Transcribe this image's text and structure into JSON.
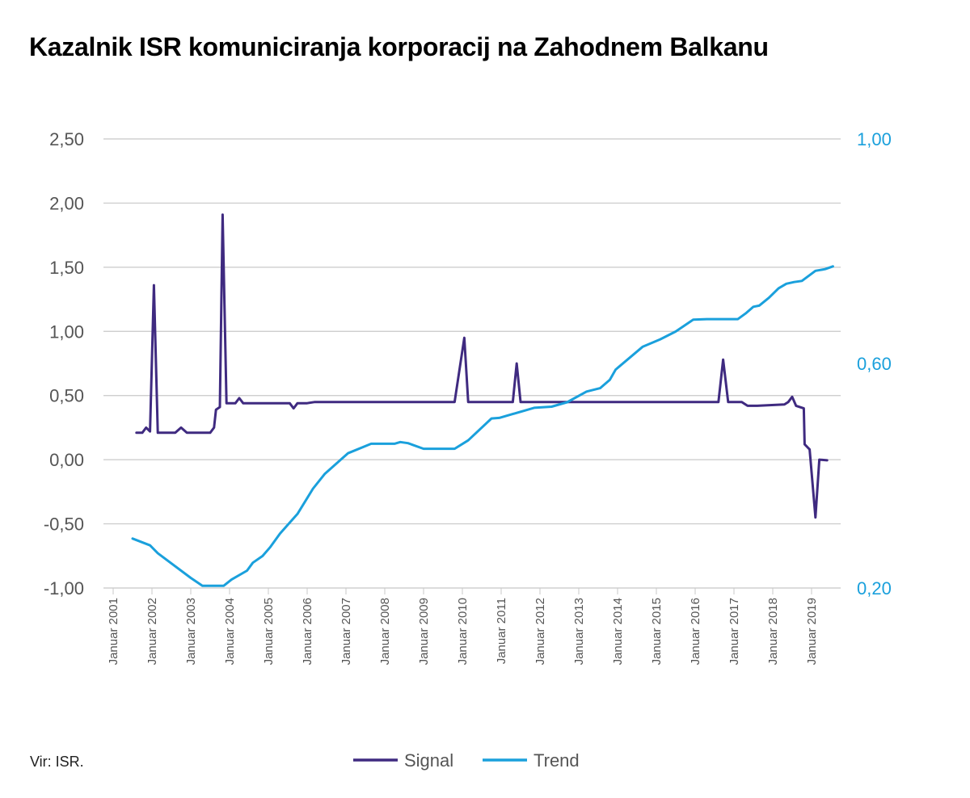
{
  "chart_data": {
    "type": "line",
    "title": "Kazalnik ISR komuniciranja korporacij na Zahodnem Balkanu",
    "source": "Vir: ISR.",
    "y_left": {
      "ticks": [
        "2,50",
        "2,00",
        "1,50",
        "1,00",
        "0,50",
        "0,00",
        "-0,50",
        "-1,00"
      ],
      "range": [
        -1.0,
        2.5
      ]
    },
    "y_right": {
      "ticks": [
        "1,00",
        "0,60",
        "0,20"
      ],
      "range": [
        0.2,
        1.0
      ]
    },
    "x_ticks": [
      "Januar 2001",
      "Januar 2002",
      "Januar 2003",
      "Januar 2004",
      "Januar 2005",
      "Januar 2006",
      "Januar 2007",
      "Januar 2008",
      "Januar 2009",
      "Januar 2010",
      "Januar 2011",
      "Januar 2012",
      "Januar 2013",
      "Januar 2014",
      "Januar 2015",
      "Januar 2016",
      "Januar 2017",
      "Januar 2018",
      "Januar 2019"
    ],
    "x_range": [
      2001.0,
      2020.0
    ],
    "legend_position": "bottom",
    "series": [
      {
        "name": "Signal",
        "axis": "left",
        "color": "#3f2a80",
        "points": [
          [
            2001.6,
            0.21
          ],
          [
            2001.75,
            0.21
          ],
          [
            2001.85,
            0.25
          ],
          [
            2001.95,
            0.22
          ],
          [
            2002.05,
            1.36
          ],
          [
            2002.15,
            0.21
          ],
          [
            2002.6,
            0.21
          ],
          [
            2002.75,
            0.25
          ],
          [
            2002.9,
            0.21
          ],
          [
            2003.5,
            0.21
          ],
          [
            2003.6,
            0.25
          ],
          [
            2003.65,
            0.39
          ],
          [
            2003.75,
            0.41
          ],
          [
            2003.82,
            1.91
          ],
          [
            2003.92,
            0.44
          ],
          [
            2004.15,
            0.44
          ],
          [
            2004.25,
            0.48
          ],
          [
            2004.35,
            0.44
          ],
          [
            2005.55,
            0.44
          ],
          [
            2005.65,
            0.4
          ],
          [
            2005.75,
            0.44
          ],
          [
            2006.0,
            0.44
          ],
          [
            2006.2,
            0.45
          ],
          [
            2009.8,
            0.45
          ],
          [
            2010.05,
            0.95
          ],
          [
            2010.15,
            0.45
          ],
          [
            2011.3,
            0.45
          ],
          [
            2011.4,
            0.75
          ],
          [
            2011.5,
            0.45
          ],
          [
            2015.9,
            0.45
          ],
          [
            2016.6,
            0.45
          ],
          [
            2016.72,
            0.78
          ],
          [
            2016.85,
            0.45
          ],
          [
            2017.2,
            0.45
          ],
          [
            2017.35,
            0.42
          ],
          [
            2017.6,
            0.42
          ],
          [
            2018.3,
            0.43
          ],
          [
            2018.4,
            0.45
          ],
          [
            2018.5,
            0.49
          ],
          [
            2018.6,
            0.42
          ],
          [
            2018.8,
            0.4
          ],
          [
            2018.82,
            0.12
          ],
          [
            2018.95,
            0.08
          ],
          [
            2019.1,
            -0.45
          ],
          [
            2019.2,
            0.0
          ],
          [
            2019.4,
            -0.005
          ]
        ]
      },
      {
        "name": "Trend",
        "axis": "right",
        "color": "#1aa0dc",
        "points": [
          [
            2001.5,
            0.288
          ],
          [
            2001.95,
            0.276
          ],
          [
            2002.15,
            0.262
          ],
          [
            2003.0,
            0.218
          ],
          [
            2003.3,
            0.204
          ],
          [
            2003.85,
            0.204
          ],
          [
            2004.05,
            0.215
          ],
          [
            2004.45,
            0.231
          ],
          [
            2004.6,
            0.245
          ],
          [
            2004.85,
            0.257
          ],
          [
            2005.05,
            0.273
          ],
          [
            2005.3,
            0.297
          ],
          [
            2005.75,
            0.332
          ],
          [
            2006.15,
            0.377
          ],
          [
            2006.45,
            0.403
          ],
          [
            2007.05,
            0.44
          ],
          [
            2007.65,
            0.457
          ],
          [
            2008.25,
            0.457
          ],
          [
            2008.4,
            0.46
          ],
          [
            2008.6,
            0.458
          ],
          [
            2009.0,
            0.448
          ],
          [
            2009.8,
            0.448
          ],
          [
            2010.15,
            0.463
          ],
          [
            2010.75,
            0.502
          ],
          [
            2010.95,
            0.503
          ],
          [
            2011.6,
            0.516
          ],
          [
            2011.85,
            0.521
          ],
          [
            2012.3,
            0.523
          ],
          [
            2012.7,
            0.531
          ],
          [
            2013.2,
            0.55
          ],
          [
            2013.55,
            0.556
          ],
          [
            2013.8,
            0.571
          ],
          [
            2013.95,
            0.589
          ],
          [
            2014.65,
            0.63
          ],
          [
            2015.1,
            0.643
          ],
          [
            2015.5,
            0.657
          ],
          [
            2015.95,
            0.678
          ],
          [
            2016.3,
            0.679
          ],
          [
            2017.1,
            0.679
          ],
          [
            2017.3,
            0.689
          ],
          [
            2017.5,
            0.701
          ],
          [
            2017.65,
            0.703
          ],
          [
            2017.9,
            0.717
          ],
          [
            2018.15,
            0.734
          ],
          [
            2018.35,
            0.742
          ],
          [
            2018.55,
            0.745
          ],
          [
            2018.75,
            0.747
          ],
          [
            2019.1,
            0.765
          ],
          [
            2019.35,
            0.768
          ],
          [
            2019.55,
            0.773
          ]
        ]
      }
    ]
  }
}
